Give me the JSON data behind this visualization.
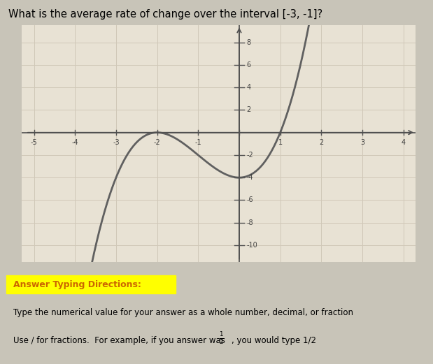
{
  "question_text": "What is the average rate of change over the interval [-3, -1]?",
  "answer_heading": "Answer Typing Directions:",
  "answer_line1": "Type the numerical value for your answer as a whole number, decimal, or fraction",
  "answer_line2_part1": "Use / for fractions.  For example, if you answer was ",
  "answer_line2_part2": ", you would type 1/2",
  "xlim": [
    -5.3,
    4.3
  ],
  "ylim": [
    -11.5,
    9.5
  ],
  "xticks": [
    -5,
    -4,
    -3,
    -2,
    -1,
    0,
    1,
    2,
    3,
    4
  ],
  "yticks": [
    -10,
    -8,
    -6,
    -4,
    -2,
    2,
    4,
    6,
    8
  ],
  "outer_bg": "#c8c4b8",
  "graph_bg": "#e8e2d4",
  "grid_color": "#d0c8b8",
  "curve_color": "#606060",
  "axis_color": "#505050",
  "tick_label_color": "#404040",
  "polynomial": [
    1,
    3,
    0,
    -4
  ],
  "note": "f(x) = x^3 + 3x^2 - 4"
}
